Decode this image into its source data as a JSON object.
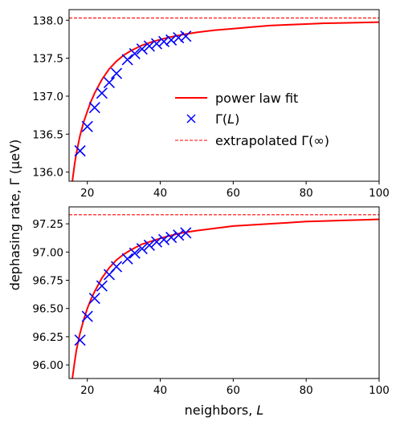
{
  "chart_data": [
    {
      "type": "line",
      "xlabel": "",
      "ylabel": "",
      "xlim": [
        15,
        100
      ],
      "ylim": [
        135.88,
        138.14
      ],
      "xticks": [
        20,
        40,
        60,
        80,
        100
      ],
      "xtick_labels": [
        "20",
        "40",
        "60",
        "80",
        "100"
      ],
      "yticks": [
        136.0,
        136.5,
        137.0,
        137.5,
        138.0
      ],
      "ytick_labels": [
        "136.0",
        "136.5",
        "137.0",
        "137.5",
        "138.0"
      ],
      "legend_position": "center-right",
      "grid": false,
      "series": [
        {
          "name": "power law fit",
          "kind": "line",
          "color": "#ff0000",
          "x": [
            15.9,
            16.5,
            17,
            18,
            19,
            20,
            21,
            22,
            24,
            26,
            28,
            30,
            32,
            35,
            38,
            42,
            46,
            50,
            55,
            60,
            65,
            70,
            75,
            80,
            85,
            90,
            95,
            100
          ],
          "y": [
            135.88,
            136.1,
            136.25,
            136.48,
            136.66,
            136.8,
            136.93,
            137.04,
            137.22,
            137.36,
            137.46,
            137.54,
            137.6,
            137.67,
            137.72,
            137.77,
            137.81,
            137.84,
            137.87,
            137.89,
            137.91,
            137.93,
            137.94,
            137.95,
            137.96,
            137.965,
            137.97,
            137.975
          ]
        },
        {
          "name": "Γ(L)",
          "kind": "scatter",
          "marker": "x",
          "color": "#0000ff",
          "x": [
            18,
            20,
            22,
            24,
            26,
            28,
            31,
            33,
            35,
            37,
            39,
            41,
            43,
            45,
            47
          ],
          "y": [
            136.28,
            136.6,
            136.85,
            137.04,
            137.18,
            137.3,
            137.48,
            137.56,
            137.62,
            137.66,
            137.69,
            137.72,
            137.74,
            137.77,
            137.79
          ]
        },
        {
          "name": "extrapolated Γ(∞)",
          "kind": "hline",
          "style": "dashed",
          "color": "#ff0000",
          "x": [
            15,
            100
          ],
          "y": [
            138.03,
            138.03
          ]
        }
      ]
    },
    {
      "type": "line",
      "xlabel": "neighbors, L",
      "ylabel": "",
      "xlim": [
        15,
        100
      ],
      "ylim": [
        95.88,
        97.4
      ],
      "xticks": [
        20,
        40,
        60,
        80,
        100
      ],
      "xtick_labels": [
        "20",
        "40",
        "60",
        "80",
        "100"
      ],
      "yticks": [
        96.0,
        96.25,
        96.5,
        96.75,
        97.0,
        97.25
      ],
      "ytick_labels": [
        "96.00",
        "96.25",
        "96.50",
        "96.75",
        "97.00",
        "97.25"
      ],
      "grid": false,
      "series": [
        {
          "kind": "line",
          "color": "#ff0000",
          "x": [
            15.9,
            16.5,
            17,
            18,
            19,
            20,
            21,
            22,
            24,
            26,
            28,
            30,
            32,
            35,
            38,
            42,
            46,
            50,
            55,
            60,
            65,
            70,
            75,
            80,
            85,
            90,
            95,
            100
          ],
          "y": [
            95.88,
            96.02,
            96.13,
            96.28,
            96.4,
            96.5,
            96.58,
            96.65,
            96.77,
            96.86,
            96.93,
            96.98,
            97.02,
            97.07,
            97.1,
            97.14,
            97.17,
            97.19,
            97.21,
            97.23,
            97.24,
            97.25,
            97.26,
            97.27,
            97.275,
            97.28,
            97.285,
            97.29
          ]
        },
        {
          "kind": "scatter",
          "marker": "x",
          "color": "#0000ff",
          "x": [
            18,
            20,
            22,
            24,
            26,
            28,
            31,
            33,
            35,
            37,
            39,
            41,
            43,
            45,
            47
          ],
          "y": [
            96.22,
            96.43,
            96.59,
            96.7,
            96.8,
            96.87,
            96.94,
            96.99,
            97.03,
            97.06,
            97.09,
            97.11,
            97.13,
            97.15,
            97.17
          ]
        },
        {
          "kind": "hline",
          "style": "dashed",
          "color": "#ff0000",
          "x": [
            15,
            100
          ],
          "y": [
            97.33,
            97.33
          ]
        }
      ]
    }
  ],
  "figure": {
    "shared_ylabel": "dephasing rate, Γ (μeV)"
  }
}
